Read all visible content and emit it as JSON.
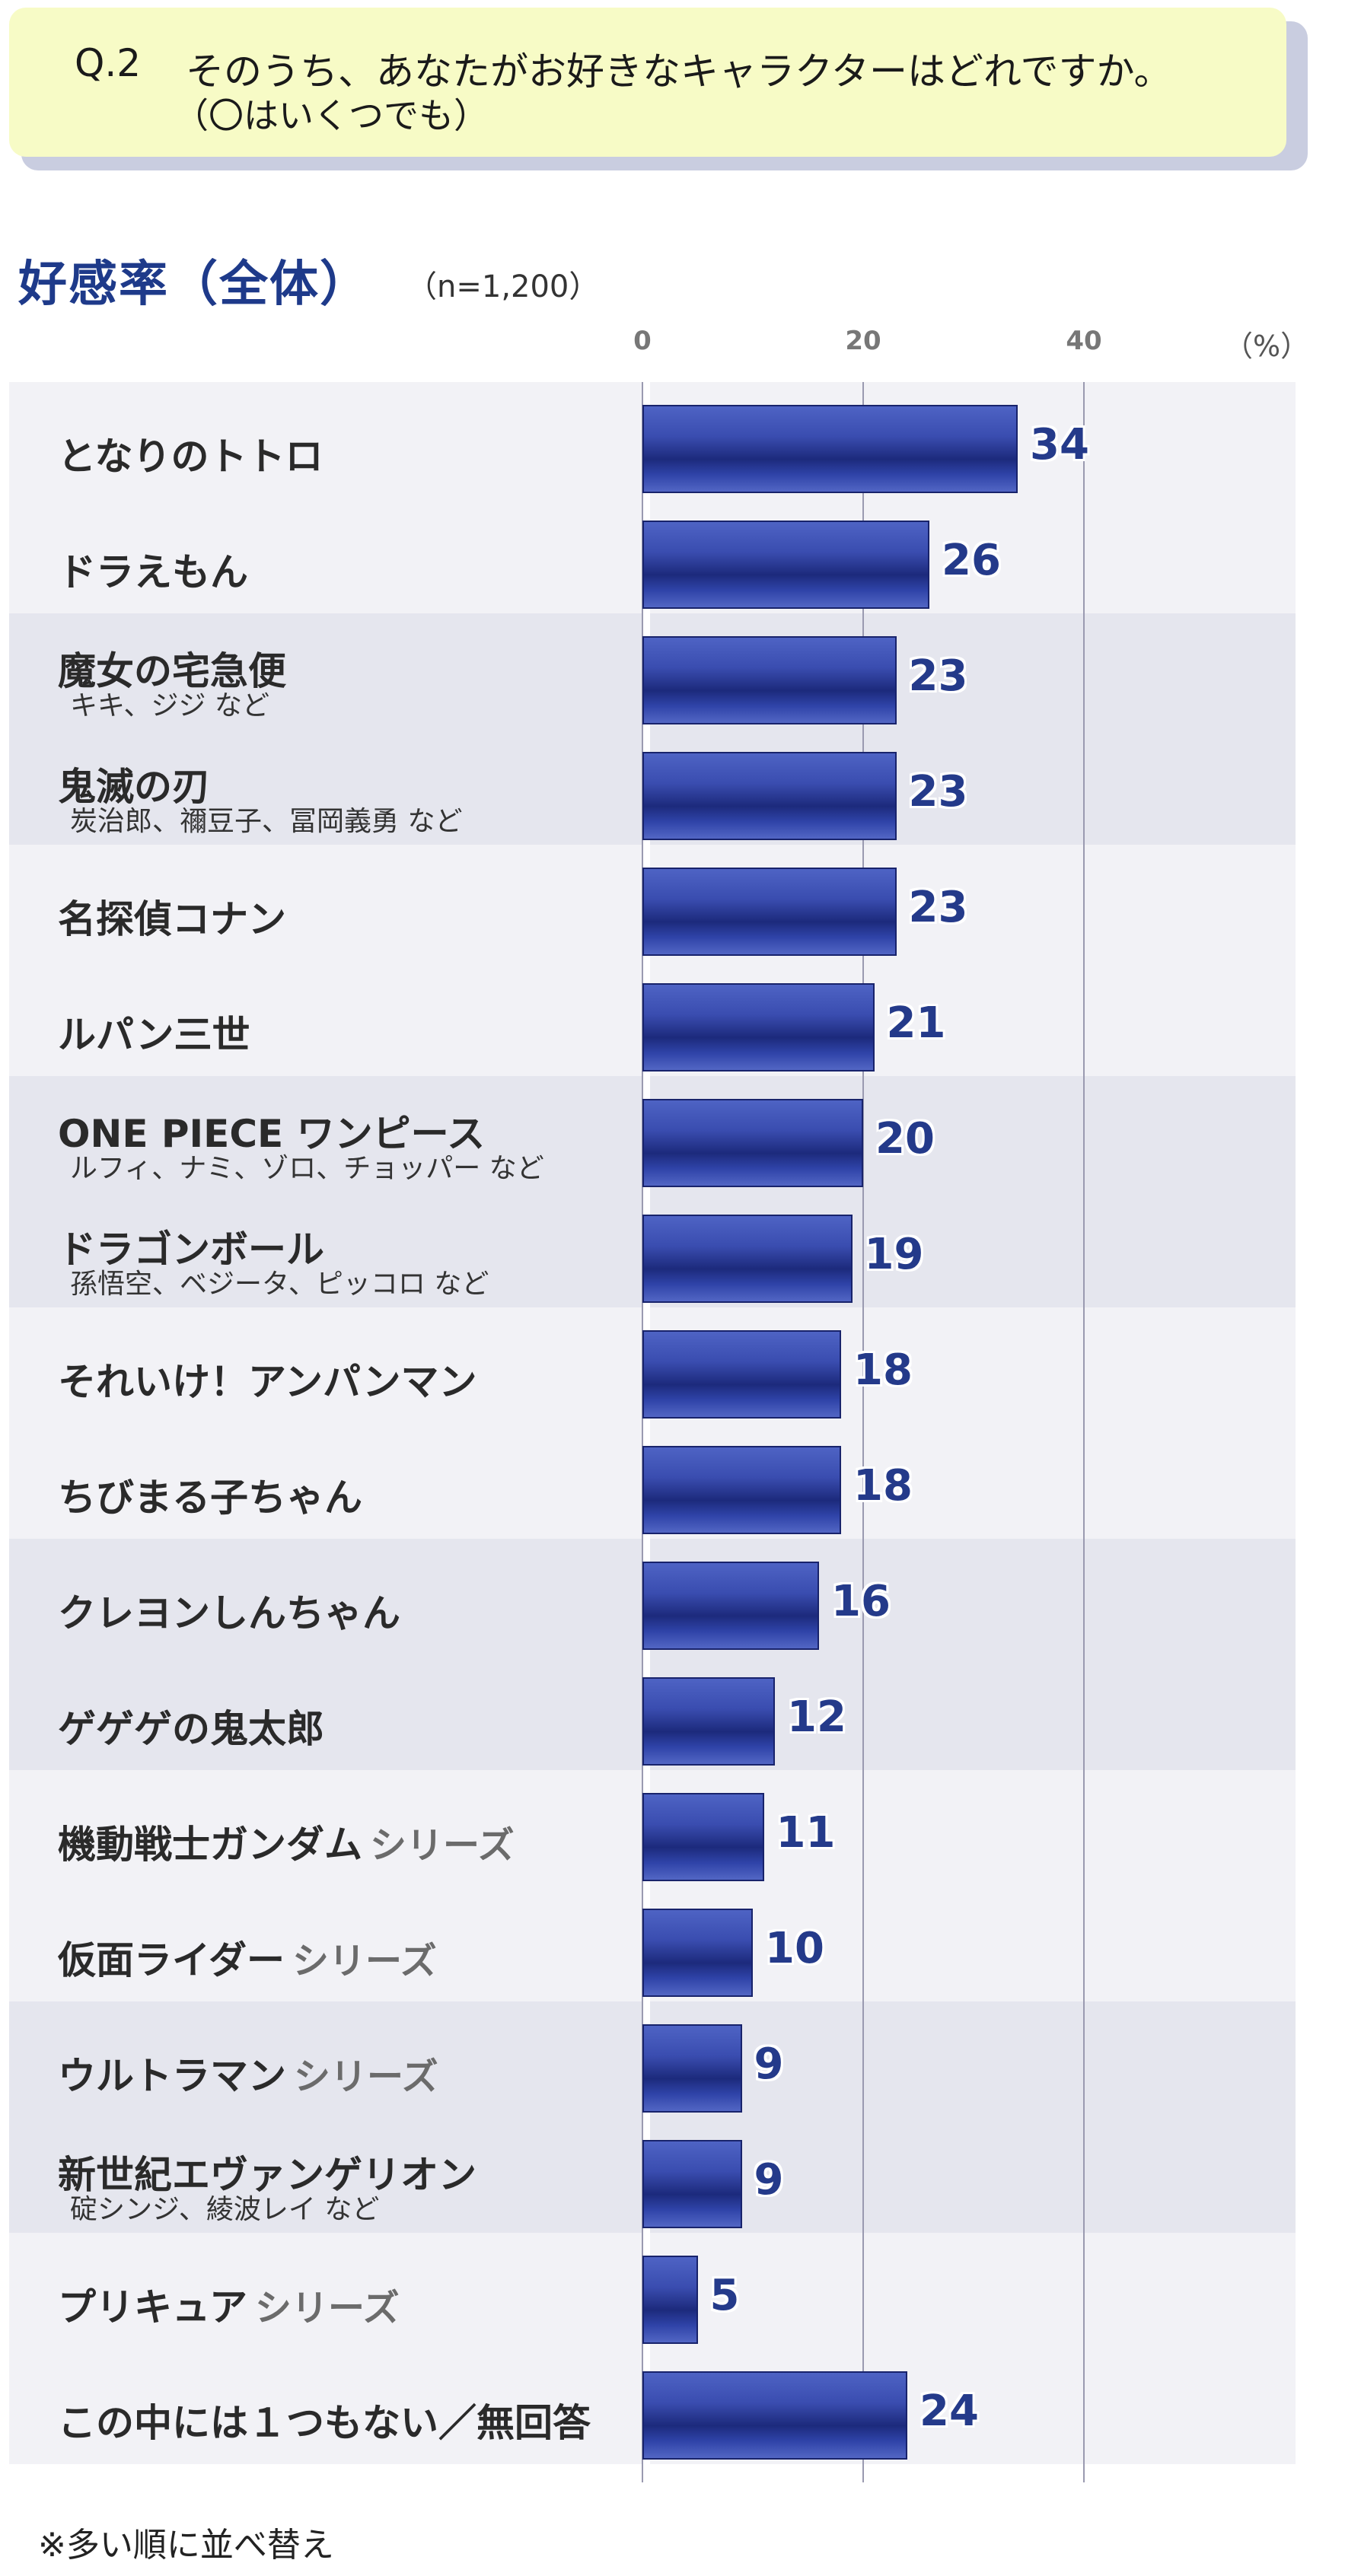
{
  "question": {
    "number": "Q.2",
    "text": "そのうち、あなたがお好きなキャラクターはどれですか。",
    "sub": "（〇はいくつでも）"
  },
  "chart_data": {
    "type": "bar",
    "orientation": "horizontal",
    "title": "好感率（全体）",
    "sample": "（n=1,200）",
    "unit": "（%）",
    "xlim": [
      0,
      60
    ],
    "xticks": [
      "0",
      "20",
      "40"
    ],
    "grid": true,
    "categories": [
      {
        "label": "となりのトトロ",
        "suffix": "",
        "sub": "",
        "value": 34
      },
      {
        "label": "ドラえもん",
        "suffix": "",
        "sub": "",
        "value": 26
      },
      {
        "label": "魔女の宅急便",
        "suffix": "",
        "sub": "キキ、ジジ など",
        "value": 23
      },
      {
        "label": "鬼滅の刃",
        "suffix": "",
        "sub": "炭治郎、禰豆子、冨岡義勇 など",
        "value": 23
      },
      {
        "label": "名探偵コナン",
        "suffix": "",
        "sub": "",
        "value": 23
      },
      {
        "label": "ルパン三世",
        "suffix": "",
        "sub": "",
        "value": 21
      },
      {
        "label": "ONE PIECE  ワンピース",
        "suffix": "",
        "sub": "ルフィ、ナミ、ゾロ、チョッパー など",
        "value": 20
      },
      {
        "label": "ドラゴンボール",
        "suffix": "",
        "sub": "孫悟空、ベジータ、ピッコロ など",
        "value": 19
      },
      {
        "label": "それいけ！アンパンマン",
        "suffix": "",
        "sub": "",
        "value": 18
      },
      {
        "label": "ちびまる子ちゃん",
        "suffix": "",
        "sub": "",
        "value": 18
      },
      {
        "label": "クレヨンしんちゃん",
        "suffix": "",
        "sub": "",
        "value": 16
      },
      {
        "label": "ゲゲゲの鬼太郎",
        "suffix": "",
        "sub": "",
        "value": 12
      },
      {
        "label": "機動戦士ガンダム",
        "suffix": "シリーズ",
        "sub": "",
        "value": 11
      },
      {
        "label": "仮面ライダー",
        "suffix": "シリーズ",
        "sub": "",
        "value": 10
      },
      {
        "label": "ウルトラマン",
        "suffix": "シリーズ",
        "sub": "",
        "value": 9
      },
      {
        "label": "新世紀エヴァンゲリオン",
        "suffix": "",
        "sub": "碇シンジ、綾波レイ など",
        "value": 9
      },
      {
        "label": "プリキュア",
        "suffix": "シリーズ",
        "sub": "",
        "value": 5
      },
      {
        "label": "この中には１つもない／無回答",
        "suffix": "",
        "sub": "",
        "value": 24
      }
    ],
    "colors": {
      "bar": "#3a4db0",
      "value_text": "#243a8a",
      "band_light": "#f2f2f6",
      "band_dark": "#e5e6ee"
    }
  },
  "footnote": "※多い順に並べ替え"
}
